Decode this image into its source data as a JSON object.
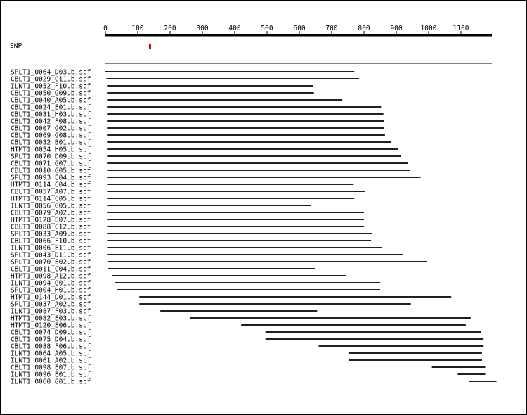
{
  "ruler": {
    "tick_labels": [
      "0",
      "100",
      "200",
      "300",
      "400",
      "500",
      "600",
      "700",
      "800",
      "900",
      "1000",
      "1100"
    ],
    "tick_values": [
      0,
      100,
      200,
      300,
      400,
      500,
      600,
      700,
      800,
      900,
      1000,
      1100
    ],
    "min": 0,
    "max": 1200
  },
  "snp": {
    "label": "SNP",
    "position": 138,
    "color": "#e00000"
  },
  "reads": [
    {
      "name": "SPLT1_0064_D03.b.scf",
      "start": 0,
      "end": 770
    },
    {
      "name": "CBLT1_0029_C11.b.scf",
      "start": 3,
      "end": 785
    },
    {
      "name": "ILNT1_0052_F10.b.scf",
      "start": 5,
      "end": 643
    },
    {
      "name": "CBLT1_0050_G09.b.scf",
      "start": 5,
      "end": 645
    },
    {
      "name": "CBLT1_0040_A05.b.scf",
      "start": 5,
      "end": 733
    },
    {
      "name": "CBLT1_0024_E01.b.scf",
      "start": 5,
      "end": 853
    },
    {
      "name": "CBLT1_0031_H03.b.scf",
      "start": 5,
      "end": 860
    },
    {
      "name": "CBLT1_0042_F08.b.scf",
      "start": 5,
      "end": 862
    },
    {
      "name": "CBLT1_0007_G02.b.scf",
      "start": 5,
      "end": 862
    },
    {
      "name": "CBLT1_0069_G08.b.scf",
      "start": 5,
      "end": 865
    },
    {
      "name": "CBLT1_0032_B01.b.scf",
      "start": 5,
      "end": 885
    },
    {
      "name": "HTMT1_0054_H05.b.scf",
      "start": 5,
      "end": 905
    },
    {
      "name": "SPLT1_0070_D09.b.scf",
      "start": 5,
      "end": 915
    },
    {
      "name": "CBLT1_0071_G07.b.scf",
      "start": 5,
      "end": 935
    },
    {
      "name": "CBLT1_0010_G05.b.scf",
      "start": 5,
      "end": 943
    },
    {
      "name": "SPLT1_0093_E04.b.scf",
      "start": 5,
      "end": 975
    },
    {
      "name": "HTMT1_0114_C04.b.scf",
      "start": 5,
      "end": 768
    },
    {
      "name": "CBLT1_0057_A07.b.scf",
      "start": 5,
      "end": 803
    },
    {
      "name": "HTMT1_0114_C05.b.scf",
      "start": 5,
      "end": 770
    },
    {
      "name": "ILNT1_0056_G05.b.scf",
      "start": 5,
      "end": 635
    },
    {
      "name": "CBLT1_0079_A02.b.scf",
      "start": 5,
      "end": 800
    },
    {
      "name": "HTMT1_0128_E07.b.scf",
      "start": 5,
      "end": 800
    },
    {
      "name": "CBLT1_0088_C12.b.scf",
      "start": 5,
      "end": 800
    },
    {
      "name": "SPLT1_0033_A09.b.scf",
      "start": 5,
      "end": 825
    },
    {
      "name": "CBLT1_0066_F10.b.scf",
      "start": 5,
      "end": 822
    },
    {
      "name": "ILNT1_0006_E11.b.scf",
      "start": 5,
      "end": 855
    },
    {
      "name": "SPLT1_0043_D11.b.scf",
      "start": 5,
      "end": 920
    },
    {
      "name": "SPLT1_0070_E02.b.scf",
      "start": 8,
      "end": 995
    },
    {
      "name": "CBLT1_0011_C04.b.scf",
      "start": 8,
      "end": 650
    },
    {
      "name": "HTMT1_0098_A12.b.scf",
      "start": 20,
      "end": 745
    },
    {
      "name": "ILNT1_0094_G01.b.scf",
      "start": 30,
      "end": 850
    },
    {
      "name": "SPLT1_0004_H01.b.scf",
      "start": 35,
      "end": 850
    },
    {
      "name": "HTMT1_0144_D01.b.scf",
      "start": 105,
      "end": 1070
    },
    {
      "name": "SPLT1_0037_A02.b.scf",
      "start": 105,
      "end": 945
    },
    {
      "name": "ILNT1_0087_F03.b.scf",
      "start": 170,
      "end": 655
    },
    {
      "name": "HTMT1_0082_E03.b.scf",
      "start": 262,
      "end": 1130
    },
    {
      "name": "HTMT1_0120_E06.b.scf",
      "start": 420,
      "end": 1115
    },
    {
      "name": "CBLT1_0074_D09.b.scf",
      "start": 495,
      "end": 1163
    },
    {
      "name": "CBLT1_0075_D04.b.scf",
      "start": 495,
      "end": 1170
    },
    {
      "name": "CBLT1_0088_F06.b.scf",
      "start": 660,
      "end": 1170
    },
    {
      "name": "ILNT1_0064_A05.b.scf",
      "start": 752,
      "end": 1165
    },
    {
      "name": "ILNT1_0061_A02.b.scf",
      "start": 752,
      "end": 1165
    },
    {
      "name": "CBLT1_0098_E07.b.scf",
      "start": 1010,
      "end": 1175
    },
    {
      "name": "ILNT1_0096_E01.b.scf",
      "start": 1090,
      "end": 1175
    },
    {
      "name": "ILNT1_0060_G01.b.scf",
      "start": 1125,
      "end": 1210
    }
  ]
}
